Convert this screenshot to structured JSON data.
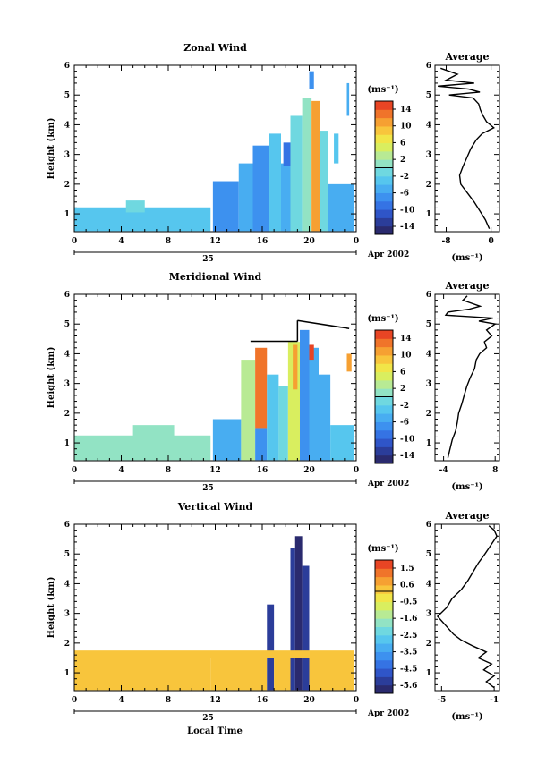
{
  "chart_data": [
    {
      "type": "heatmap",
      "title": "Zonal Wind",
      "ylabel": "Height (km)",
      "xlabel": "",
      "x_ticks": [
        "0",
        "4",
        "8",
        "12",
        "16",
        "20",
        "0"
      ],
      "x_range": [
        0,
        24
      ],
      "y_ticks": [
        "1",
        "2",
        "3",
        "4",
        "5",
        "6"
      ],
      "ylim": [
        0.4,
        6
      ],
      "day_label": "25",
      "date_label": "Apr 2002",
      "colorbar": {
        "unit": "(ms⁻¹)",
        "ticks": [
          "14",
          "10",
          "6",
          "2",
          "-2",
          "-6",
          "-10",
          "-14"
        ],
        "range": [
          -16,
          16
        ],
        "colors": [
          "#2a2a6e",
          "#2b3d9a",
          "#2f55c8",
          "#3573e4",
          "#3d91ef",
          "#48adf1",
          "#56c6ee",
          "#6fd8e0",
          "#92e3c4",
          "#b8ea94",
          "#d9ee5f",
          "#f1e548",
          "#f8c53c",
          "#f6a032",
          "#f0742a",
          "#e84524"
        ]
      },
      "cells": [
        {
          "t0": 0.0,
          "t1": 11.6,
          "z0": 0.42,
          "z1": 1.22,
          "v": -4
        },
        {
          "t0": 4.4,
          "t1": 6.0,
          "z0": 1.05,
          "z1": 1.45,
          "v": -2
        },
        {
          "t0": 11.8,
          "t1": 14.0,
          "z0": 0.42,
          "z1": 2.1,
          "v": -7
        },
        {
          "t0": 14.0,
          "t1": 15.2,
          "z0": 0.42,
          "z1": 2.7,
          "v": -5
        },
        {
          "t0": 15.2,
          "t1": 16.6,
          "z0": 0.42,
          "z1": 3.3,
          "v": -8
        },
        {
          "t0": 16.6,
          "t1": 17.6,
          "z0": 0.42,
          "z1": 3.7,
          "v": -3
        },
        {
          "t0": 17.6,
          "t1": 18.4,
          "z0": 0.42,
          "z1": 2.7,
          "v": -6
        },
        {
          "t0": 18.4,
          "t1": 19.4,
          "z0": 0.42,
          "z1": 4.3,
          "v": -2
        },
        {
          "t0": 19.4,
          "t1": 20.2,
          "z0": 0.42,
          "z1": 4.9,
          "v": 1
        },
        {
          "t0": 20.2,
          "t1": 20.9,
          "z0": 0.42,
          "z1": 4.8,
          "v": 10
        },
        {
          "t0": 20.9,
          "t1": 21.6,
          "z0": 0.42,
          "z1": 3.8,
          "v": -1
        },
        {
          "t0": 21.6,
          "t1": 23.8,
          "z0": 0.42,
          "z1": 2.0,
          "v": -5
        },
        {
          "t0": 22.1,
          "t1": 22.5,
          "z0": 2.7,
          "z1": 3.7,
          "v": -4
        },
        {
          "t0": 23.2,
          "t1": 23.4,
          "z0": 4.3,
          "z1": 5.4,
          "v": -6
        },
        {
          "t0": 17.8,
          "t1": 18.4,
          "z0": 2.6,
          "z1": 3.4,
          "v": -10
        },
        {
          "t0": 20.0,
          "t1": 20.4,
          "z0": 5.2,
          "z1": 5.8,
          "v": -8
        }
      ],
      "profile": {
        "title": "Average",
        "unit": "(ms⁻¹)",
        "x_ticks": [
          "-8",
          "0"
        ],
        "xlim": [
          -10,
          1.5
        ],
        "z": [
          0.5,
          0.8,
          1.1,
          1.4,
          1.7,
          2.0,
          2.3,
          2.6,
          2.9,
          3.2,
          3.5,
          3.7,
          3.9,
          4.1,
          4.3,
          4.5,
          4.7,
          4.9,
          5.0,
          5.1,
          5.2,
          5.3,
          5.4,
          5.5,
          5.7,
          5.9
        ],
        "u": [
          -0.3,
          -1.0,
          -2.0,
          -3.0,
          -4.2,
          -5.4,
          -5.6,
          -5.0,
          -4.3,
          -3.6,
          -2.6,
          -1.6,
          0.5,
          -0.8,
          -1.4,
          -1.9,
          -2.2,
          -3.2,
          -7.5,
          -2.0,
          -4.0,
          -9.5,
          -3.0,
          -8.0,
          -6.0,
          -9.0
        ]
      }
    },
    {
      "type": "heatmap",
      "title": "Meridional Wind",
      "ylabel": "Height (km)",
      "xlabel": "",
      "x_ticks": [
        "0",
        "4",
        "8",
        "12",
        "16",
        "20",
        "0"
      ],
      "x_range": [
        0,
        24
      ],
      "y_ticks": [
        "1",
        "2",
        "3",
        "4",
        "5",
        "6"
      ],
      "ylim": [
        0.4,
        6
      ],
      "day_label": "25",
      "date_label": "Apr 2002",
      "colorbar": {
        "unit": "(ms⁻¹)",
        "ticks": [
          "14",
          "10",
          "6",
          "2",
          "-2",
          "-6",
          "-10",
          "-14"
        ],
        "range": [
          -16,
          16
        ],
        "colors": [
          "#2a2a6e",
          "#2b3d9a",
          "#2f55c8",
          "#3573e4",
          "#3d91ef",
          "#48adf1",
          "#56c6ee",
          "#6fd8e0",
          "#92e3c4",
          "#b8ea94",
          "#d9ee5f",
          "#f1e548",
          "#f8c53c",
          "#f6a032",
          "#f0742a",
          "#e84524"
        ]
      },
      "cells": [
        {
          "t0": 0.0,
          "t1": 11.6,
          "z0": 0.42,
          "z1": 1.25,
          "v": 0
        },
        {
          "t0": 5.0,
          "t1": 8.5,
          "z0": 1.2,
          "z1": 1.6,
          "v": 0
        },
        {
          "t0": 11.8,
          "t1": 14.2,
          "z0": 0.42,
          "z1": 1.8,
          "v": -5
        },
        {
          "t0": 14.2,
          "t1": 15.4,
          "z0": 0.42,
          "z1": 3.8,
          "v": 2
        },
        {
          "t0": 15.4,
          "t1": 16.4,
          "z0": 1.5,
          "z1": 4.2,
          "v": 12
        },
        {
          "t0": 15.4,
          "t1": 16.4,
          "z0": 0.42,
          "z1": 1.5,
          "v": -8
        },
        {
          "t0": 16.4,
          "t1": 17.4,
          "z0": 0.42,
          "z1": 3.3,
          "v": -4
        },
        {
          "t0": 17.4,
          "t1": 18.2,
          "z0": 0.42,
          "z1": 2.9,
          "v": -2
        },
        {
          "t0": 18.2,
          "t1": 19.2,
          "z0": 0.42,
          "z1": 4.4,
          "v": 5
        },
        {
          "t0": 18.6,
          "t1": 19.0,
          "z0": 2.8,
          "z1": 4.3,
          "v": 11
        },
        {
          "t0": 19.2,
          "t1": 20.0,
          "z0": 0.42,
          "z1": 4.8,
          "v": -7
        },
        {
          "t0": 20.0,
          "t1": 20.8,
          "z0": 0.42,
          "z1": 4.2,
          "v": -6
        },
        {
          "t0": 20.0,
          "t1": 20.4,
          "z0": 3.8,
          "z1": 4.3,
          "v": 14
        },
        {
          "t0": 20.8,
          "t1": 21.8,
          "z0": 0.42,
          "z1": 3.3,
          "v": -5
        },
        {
          "t0": 21.8,
          "t1": 23.8,
          "z0": 0.42,
          "z1": 1.6,
          "v": -4
        },
        {
          "t0": 23.2,
          "t1": 23.6,
          "z0": 3.4,
          "z1": 4.0,
          "v": 10
        }
      ],
      "lines": [
        {
          "t0": 15.0,
          "t1": 19.0,
          "z": 4.42
        },
        {
          "t0": 19.0,
          "t1": 19.0,
          "z0": 4.42,
          "z1": 5.12
        },
        {
          "t0": 19.0,
          "t1": 23.4,
          "z0": 5.12,
          "z1": 4.85
        }
      ],
      "profile": {
        "title": "Average",
        "unit": "(ms⁻¹)",
        "x_ticks": [
          "-4",
          "8"
        ],
        "xlim": [
          -6,
          9
        ],
        "z": [
          0.5,
          0.8,
          1.1,
          1.4,
          1.7,
          2.0,
          2.3,
          2.6,
          2.9,
          3.2,
          3.5,
          3.8,
          4.0,
          4.2,
          4.4,
          4.6,
          4.8,
          5.0,
          5.1,
          5.2,
          5.3,
          5.4,
          5.5,
          5.6,
          5.8,
          5.95
        ],
        "u": [
          -3.0,
          -2.5,
          -2.0,
          -1.2,
          -0.8,
          -0.5,
          0.2,
          0.8,
          1.4,
          2.2,
          3.2,
          3.6,
          4.4,
          6.0,
          5.5,
          7.2,
          6.0,
          8.0,
          4.2,
          7.5,
          -3.5,
          -3.0,
          2.0,
          4.5,
          0.5,
          1.5
        ]
      }
    },
    {
      "type": "heatmap",
      "title": "Vertical Wind",
      "ylabel": "Height (km)",
      "xlabel": "Local Time",
      "x_ticks": [
        "0",
        "4",
        "8",
        "12",
        "16",
        "20",
        "0"
      ],
      "x_range": [
        0,
        24
      ],
      "y_ticks": [
        "1",
        "2",
        "3",
        "4",
        "5",
        "6"
      ],
      "ylim": [
        0.4,
        6
      ],
      "day_label": "25",
      "date_label": "Apr 2002",
      "colorbar": {
        "unit": "(ms⁻¹)",
        "ticks": [
          "1.5",
          "0.6",
          "-0.5",
          "-1.6",
          "-2.5",
          "-3.5",
          "-4.5",
          "-5.6"
        ],
        "range": [
          -6.5,
          2.0
        ],
        "colors": [
          "#2a2a6e",
          "#2b3d9a",
          "#2f55c8",
          "#3573e4",
          "#3d91ef",
          "#48adf1",
          "#56c6ee",
          "#6fd8e0",
          "#92e3c4",
          "#b8ea94",
          "#d9ee5f",
          "#f1e548",
          "#f8c53c",
          "#f6a032",
          "#f0742a",
          "#e84524"
        ]
      },
      "cells": [
        {
          "t0": 0.0,
          "t1": 11.6,
          "z0": 0.42,
          "z1": 1.5,
          "v": 0.2
        },
        {
          "t0": 11.6,
          "t1": 16.4,
          "z0": 0.42,
          "z1": 1.5,
          "v": 0.0
        },
        {
          "t0": 16.4,
          "t1": 17.0,
          "z0": 0.42,
          "z1": 3.3,
          "v": -5.8
        },
        {
          "t0": 17.0,
          "t1": 18.4,
          "z0": 0.42,
          "z1": 1.5,
          "v": 0.1
        },
        {
          "t0": 18.4,
          "t1": 18.8,
          "z0": 0.42,
          "z1": 5.2,
          "v": -5.8
        },
        {
          "t0": 18.8,
          "t1": 19.4,
          "z0": 0.42,
          "z1": 5.6,
          "v": -6.0
        },
        {
          "t0": 19.4,
          "t1": 20.0,
          "z0": 0.42,
          "z1": 4.6,
          "v": -5.5
        },
        {
          "t0": 20.0,
          "t1": 23.8,
          "z0": 0.42,
          "z1": 1.5,
          "v": 0.1
        },
        {
          "t0": 0.0,
          "t1": 23.8,
          "z0": 1.5,
          "z1": 1.75,
          "v": 0.3
        }
      ],
      "profile": {
        "title": "Average",
        "unit": "(ms⁻¹)",
        "x_ticks": [
          "-5",
          "-1"
        ],
        "xlim": [
          -5.5,
          -0.6
        ],
        "z": [
          0.5,
          0.7,
          0.9,
          1.1,
          1.3,
          1.5,
          1.7,
          1.9,
          2.1,
          2.3,
          2.6,
          2.9,
          3.2,
          3.5,
          3.8,
          4.1,
          4.4,
          4.7,
          5.0,
          5.2,
          5.4,
          5.6,
          5.8,
          5.95
        ],
        "u": [
          -1.0,
          -1.6,
          -1.0,
          -1.8,
          -1.2,
          -2.2,
          -1.6,
          -2.6,
          -3.5,
          -4.1,
          -4.7,
          -5.3,
          -4.6,
          -4.2,
          -3.5,
          -3.0,
          -2.6,
          -2.2,
          -1.7,
          -1.4,
          -1.1,
          -0.8,
          -1.0,
          -1.4
        ]
      }
    }
  ]
}
